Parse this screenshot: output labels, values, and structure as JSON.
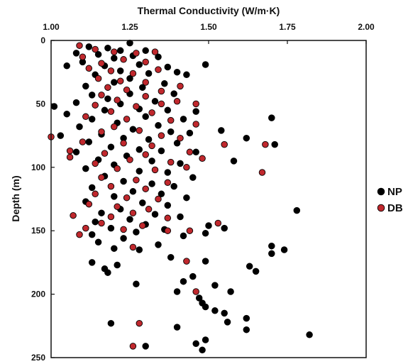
{
  "chart_data": {
    "type": "scatter",
    "title": "",
    "xlabel": "Thermal Conductivity (W/m·K)",
    "ylabel": "Depth (m)",
    "xlim": [
      1.0,
      2.0
    ],
    "ylim": [
      0,
      250
    ],
    "x_axis_position": "top",
    "y_axis_inverted": true,
    "x_ticks": [
      "1.00",
      "1.25",
      "1.50",
      "1.75",
      "2.00"
    ],
    "y_ticks": [
      "0",
      "50",
      "100",
      "150",
      "200",
      "250"
    ],
    "grid": false,
    "legend_position": "right",
    "series": [
      {
        "name": "NP",
        "color": "#000000",
        "points": [
          [
            1.25,
            2
          ],
          [
            1.12,
            5
          ],
          [
            1.18,
            6
          ],
          [
            1.22,
            8
          ],
          [
            1.3,
            8
          ],
          [
            1.08,
            10
          ],
          [
            1.15,
            11
          ],
          [
            1.26,
            12
          ],
          [
            1.34,
            13
          ],
          [
            1.2,
            14
          ],
          [
            1.1,
            17
          ],
          [
            1.05,
            20
          ],
          [
            1.17,
            20
          ],
          [
            1.28,
            19
          ],
          [
            1.37,
            21
          ],
          [
            1.22,
            24
          ],
          [
            1.14,
            27
          ],
          [
            1.31,
            26
          ],
          [
            1.4,
            25
          ],
          [
            1.49,
            19
          ],
          [
            1.25,
            30
          ],
          [
            1.43,
            27
          ],
          [
            1.36,
            34
          ],
          [
            1.2,
            33
          ],
          [
            1.11,
            36
          ],
          [
            1.29,
            37
          ],
          [
            1.13,
            43
          ],
          [
            1.25,
            42
          ],
          [
            1.39,
            42
          ],
          [
            1.18,
            46
          ],
          [
            1.33,
            48
          ],
          [
            1.08,
            49
          ],
          [
            1.22,
            50
          ],
          [
            1.28,
            54
          ],
          [
            1.01,
            52
          ],
          [
            1.17,
            55
          ],
          [
            1.37,
            55
          ],
          [
            1.46,
            56
          ],
          [
            1.05,
            58
          ],
          [
            1.3,
            60
          ],
          [
            1.13,
            62
          ],
          [
            1.42,
            62
          ],
          [
            1.7,
            61
          ],
          [
            1.21,
            65
          ],
          [
            1.09,
            68
          ],
          [
            1.34,
            67
          ],
          [
            1.26,
            70
          ],
          [
            1.38,
            72
          ],
          [
            1.16,
            74
          ],
          [
            1.44,
            73
          ],
          [
            1.54,
            71
          ],
          [
            1.03,
            75
          ],
          [
            1.23,
            77
          ],
          [
            1.31,
            78
          ],
          [
            1.62,
            77
          ],
          [
            1.12,
            80
          ],
          [
            1.4,
            81
          ],
          [
            1.19,
            84
          ],
          [
            1.28,
            86
          ],
          [
            1.35,
            87
          ],
          [
            1.71,
            82
          ],
          [
            1.08,
            88
          ],
          [
            1.46,
            88
          ],
          [
            1.24,
            91
          ],
          [
            1.15,
            94
          ],
          [
            1.32,
            95
          ],
          [
            1.41,
            97
          ],
          [
            1.2,
            98
          ],
          [
            1.58,
            95
          ],
          [
            1.11,
            101
          ],
          [
            1.28,
            103
          ],
          [
            1.37,
            104
          ],
          [
            1.17,
            107
          ],
          [
            1.45,
            108
          ],
          [
            1.23,
            111
          ],
          [
            1.32,
            113
          ],
          [
            1.39,
            115
          ],
          [
            1.13,
            116
          ],
          [
            1.26,
            119
          ],
          [
            1.35,
            121
          ],
          [
            1.2,
            123
          ],
          [
            1.43,
            124
          ],
          [
            1.11,
            127
          ],
          [
            1.29,
            128
          ],
          [
            1.37,
            130
          ],
          [
            1.22,
            133
          ],
          [
            1.16,
            136
          ],
          [
            1.33,
            137
          ],
          [
            1.41,
            139
          ],
          [
            1.25,
            141
          ],
          [
            1.78,
            134
          ],
          [
            1.14,
            143
          ],
          [
            1.3,
            145
          ],
          [
            1.5,
            146
          ],
          [
            1.19,
            148
          ],
          [
            1.36,
            149
          ],
          [
            1.27,
            151
          ],
          [
            1.13,
            153
          ],
          [
            1.42,
            154
          ],
          [
            1.23,
            156
          ],
          [
            1.55,
            148
          ],
          [
            1.49,
            152
          ],
          [
            1.15,
            159
          ],
          [
            1.34,
            161
          ],
          [
            1.7,
            162
          ],
          [
            1.74,
            165
          ],
          [
            1.2,
            164
          ],
          [
            1.28,
            165
          ],
          [
            1.7,
            168
          ],
          [
            1.38,
            171
          ],
          [
            1.13,
            175
          ],
          [
            1.49,
            174
          ],
          [
            1.21,
            177
          ],
          [
            1.63,
            178
          ],
          [
            1.17,
            180
          ],
          [
            1.65,
            182
          ],
          [
            1.18,
            183
          ],
          [
            1.45,
            186
          ],
          [
            1.42,
            190
          ],
          [
            1.27,
            192
          ],
          [
            1.52,
            193
          ],
          [
            1.4,
            198
          ],
          [
            1.57,
            198
          ],
          [
            1.47,
            203
          ],
          [
            1.48,
            207
          ],
          [
            1.49,
            210
          ],
          [
            1.52,
            213
          ],
          [
            1.55,
            215
          ],
          [
            1.62,
            219
          ],
          [
            1.56,
            222
          ],
          [
            1.19,
            223
          ],
          [
            1.4,
            226
          ],
          [
            1.62,
            228
          ],
          [
            1.82,
            232
          ],
          [
            1.49,
            236
          ],
          [
            1.3,
            241
          ],
          [
            1.46,
            239
          ],
          [
            1.48,
            244
          ]
        ]
      },
      {
        "name": "DB",
        "color": "#c0282d",
        "points": [
          [
            1.09,
            4
          ],
          [
            1.14,
            7
          ],
          [
            1.2,
            9
          ],
          [
            1.27,
            10
          ],
          [
            1.33,
            9
          ],
          [
            1.1,
            13
          ],
          [
            1.23,
            15
          ],
          [
            1.16,
            18
          ],
          [
            1.3,
            17
          ],
          [
            1.12,
            22
          ],
          [
            1.19,
            24
          ],
          [
            1.34,
            23
          ],
          [
            1.26,
            26
          ],
          [
            1.15,
            30
          ],
          [
            1.22,
            32
          ],
          [
            1.3,
            33
          ],
          [
            1.18,
            37
          ],
          [
            1.41,
            36
          ],
          [
            1.24,
            39
          ],
          [
            1.35,
            40
          ],
          [
            1.16,
            43
          ],
          [
            1.3,
            44
          ],
          [
            1.21,
            47
          ],
          [
            1.4,
            48
          ],
          [
            1.14,
            51
          ],
          [
            1.27,
            52
          ],
          [
            1.35,
            50
          ],
          [
            1.46,
            50
          ],
          [
            1.19,
            56
          ],
          [
            1.32,
            57
          ],
          [
            1.11,
            60
          ],
          [
            1.24,
            62
          ],
          [
            1.38,
            63
          ],
          [
            1.46,
            66
          ],
          [
            1.2,
            68
          ],
          [
            1.28,
            71
          ],
          [
            1.16,
            72
          ],
          [
            1.35,
            75
          ],
          [
            1.41,
            77
          ],
          [
            1.0,
            76
          ],
          [
            1.1,
            80
          ],
          [
            1.23,
            81
          ],
          [
            1.32,
            83
          ],
          [
            1.55,
            82
          ],
          [
            1.68,
            82
          ],
          [
            1.06,
            87
          ],
          [
            1.17,
            89
          ],
          [
            1.3,
            90
          ],
          [
            1.44,
            88
          ],
          [
            1.06,
            92
          ],
          [
            1.25,
            94
          ],
          [
            1.38,
            96
          ],
          [
            1.48,
            93
          ],
          [
            1.14,
            97
          ],
          [
            1.21,
            101
          ],
          [
            1.33,
            102
          ],
          [
            1.43,
            100
          ],
          [
            1.67,
            104
          ],
          [
            1.16,
            108
          ],
          [
            1.27,
            110
          ],
          [
            1.37,
            112
          ],
          [
            1.19,
            115
          ],
          [
            1.3,
            117
          ],
          [
            1.14,
            121
          ],
          [
            1.24,
            124
          ],
          [
            1.34,
            125
          ],
          [
            1.12,
            129
          ],
          [
            1.21,
            131
          ],
          [
            1.31,
            133
          ],
          [
            1.26,
            136
          ],
          [
            1.07,
            138
          ],
          [
            1.19,
            139
          ],
          [
            1.37,
            140
          ],
          [
            1.16,
            144
          ],
          [
            1.29,
            146
          ],
          [
            1.53,
            144
          ],
          [
            1.11,
            148
          ],
          [
            1.23,
            149
          ],
          [
            1.37,
            150
          ],
          [
            1.44,
            150
          ],
          [
            1.09,
            153
          ],
          [
            1.26,
            163
          ],
          [
            1.43,
            174
          ],
          [
            1.46,
            198
          ],
          [
            1.28,
            223
          ],
          [
            1.26,
            241
          ]
        ]
      }
    ]
  }
}
